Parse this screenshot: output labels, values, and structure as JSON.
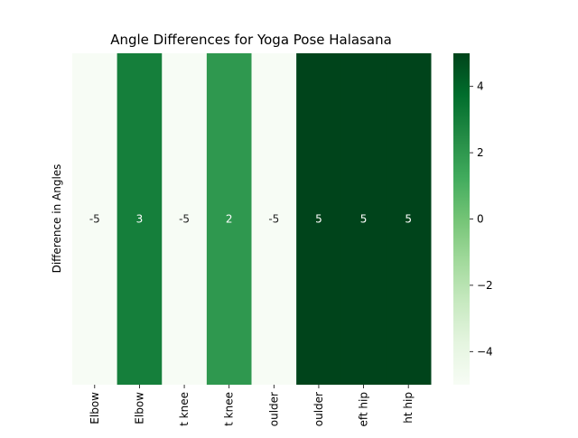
{
  "chart_data": {
    "type": "heatmap",
    "title": "Angle Differences for Yoga Pose Halasana",
    "xlabel": "",
    "ylabel": "Difference in Angles",
    "categories": [
      "Elbow",
      "Elbow",
      "t knee",
      "t knee",
      "oulder",
      "oulder",
      "eft hip",
      "ht hip"
    ],
    "values": [
      -5,
      3,
      -5,
      2,
      -5,
      5,
      5,
      5
    ],
    "colorbar": {
      "min": -5,
      "max": 5,
      "ticks": [
        -4,
        -2,
        0,
        2,
        4
      ],
      "tick_labels": [
        "−4",
        "−2",
        "0",
        "2",
        "4"
      ],
      "colormap": "Greens",
      "low_color": "#f7fcf5",
      "high_color": "#00441b"
    },
    "grid": false,
    "legend": "colorbar-right"
  }
}
